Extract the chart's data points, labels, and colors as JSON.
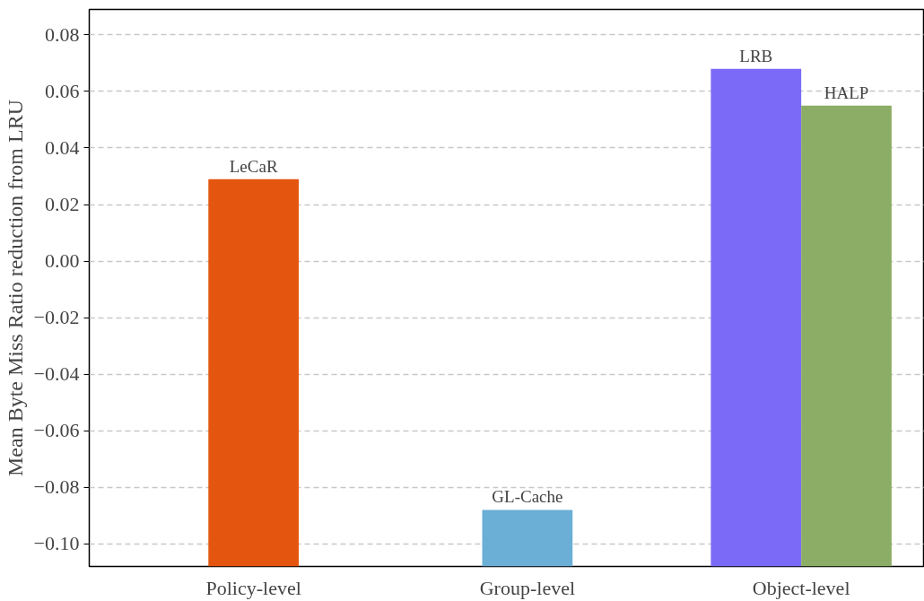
{
  "chart_data": {
    "type": "bar",
    "ylabel": "Mean Byte Miss Ratio reduction from LRU",
    "categories": [
      "Policy-level",
      "Group-level",
      "Object-level"
    ],
    "series": [
      {
        "name": "LeCaR",
        "color": "#e4560f",
        "values": [
          0.137,
          null,
          null
        ],
        "base": [
          -0.108,
          null,
          null
        ]
      },
      {
        "name": "GL-Cache",
        "color": "#6baed6",
        "values": [
          null,
          0.02,
          null
        ],
        "base": [
          null,
          -0.108,
          null
        ]
      },
      {
        "name": "LRB",
        "color": "#7b6af8",
        "values": [
          null,
          null,
          0.176
        ],
        "base": [
          null,
          null,
          -0.108
        ]
      },
      {
        "name": "HALP",
        "color": "#8cad65",
        "values": [
          null,
          null,
          0.163
        ],
        "base": [
          null,
          null,
          -0.108
        ]
      }
    ],
    "ylim": [
      -0.108,
      0.089
    ],
    "yticks": [
      {
        "value": -0.1,
        "label": "−0.10"
      },
      {
        "value": -0.08,
        "label": "−0.08"
      },
      {
        "value": -0.06,
        "label": "−0.06"
      },
      {
        "value": -0.04,
        "label": "−0.04"
      },
      {
        "value": -0.02,
        "label": "−0.02"
      },
      {
        "value": 0.0,
        "label": "0.00"
      },
      {
        "value": 0.02,
        "label": "0.02"
      },
      {
        "value": 0.04,
        "label": "0.04"
      },
      {
        "value": 0.06,
        "label": "0.06"
      },
      {
        "value": 0.08,
        "label": "0.08"
      }
    ],
    "grid": "y"
  }
}
